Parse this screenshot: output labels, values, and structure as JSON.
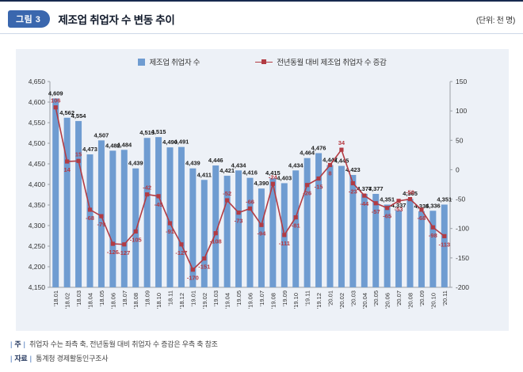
{
  "header": {
    "badge": "그림 3",
    "title": "제조업 취업자 수 변동 추이",
    "unit": "(단위: 천 명)"
  },
  "legend": {
    "bar_label": "제조업 취업자 수",
    "line_label": "전년동월 대비 제조업 취업자 수 증감"
  },
  "chart_data": {
    "type": "bar",
    "categories": [
      "'18.01",
      "'18.02",
      "'18.03",
      "'18.04",
      "'18.05",
      "'18.06",
      "'18.07",
      "'18.08",
      "'18.09",
      "'18.10",
      "'18.11",
      "'18.12",
      "'19.01",
      "'19.02",
      "'19.03",
      "'19.04",
      "'19.05",
      "'19.06",
      "'19.07",
      "'19.08",
      "'19.09",
      "'19.10",
      "'19.11",
      "'19.12",
      "'20.01",
      "'20.02",
      "'20.03",
      "'20.04",
      "'20.05",
      "'20.06",
      "'20.07",
      "'20.08",
      "'20.09",
      "'20.10",
      "'20.11"
    ],
    "series": [
      {
        "name": "제조업 취업자 수",
        "type": "bar",
        "axis": "left",
        "values": [
          4609,
          4562,
          4554,
          4473,
          4507,
          4482,
          4484,
          4439,
          4513,
          4515,
          4490,
          4491,
          4439,
          4411,
          4446,
          4421,
          4434,
          4416,
          4390,
          4415,
          4403,
          4434,
          4464,
          4476,
          4447,
          4445,
          4423,
          4377,
          4377,
          4351,
          4337,
          4365,
          4335,
          4336,
          4351
        ]
      },
      {
        "name": "전년동월 대비 제조업 취업자 수 증감",
        "type": "line",
        "axis": "right",
        "values": [
          106,
          14,
          15,
          -68,
          -79,
          -126,
          -127,
          -105,
          -42,
          -45,
          -91,
          -127,
          -170,
          -151,
          -108,
          -52,
          -73,
          -66,
          -94,
          -24,
          -111,
          -81,
          -26,
          -15,
          8,
          34,
          -23,
          -44,
          -57,
          -65,
          -53,
          -50,
          -68,
          -98,
          -113
        ]
      }
    ],
    "left_axis": {
      "min": 4150,
      "max": 4650,
      "step": 50,
      "ticks": [
        "4,650",
        "4,600",
        "4,550",
        "4,500",
        "4,450",
        "4,400",
        "4,350",
        "4,300",
        "4,250",
        "4,200",
        "4,150"
      ]
    },
    "right_axis": {
      "min": -200,
      "max": 150,
      "step": 50,
      "ticks": [
        "150",
        "100",
        "50",
        "0",
        "-50",
        "-100",
        "-150",
        "-200"
      ]
    },
    "grid": false,
    "legend_position": "top",
    "colors": {
      "bar": "#6f9cd1",
      "line": "#b23b43",
      "bar_label": "#1a1a1a",
      "line_label": "#b5373f",
      "axis": "#9aa0a6",
      "panel_bg": "#edf1f7"
    }
  },
  "notes": [
    {
      "label": "주",
      "text": "취업자 수는 좌측 축, 전년동월 대비 취업자 수 증감은 우측 축 참조"
    },
    {
      "label": "자료",
      "text": "통계청 경제활동인구조사"
    }
  ]
}
